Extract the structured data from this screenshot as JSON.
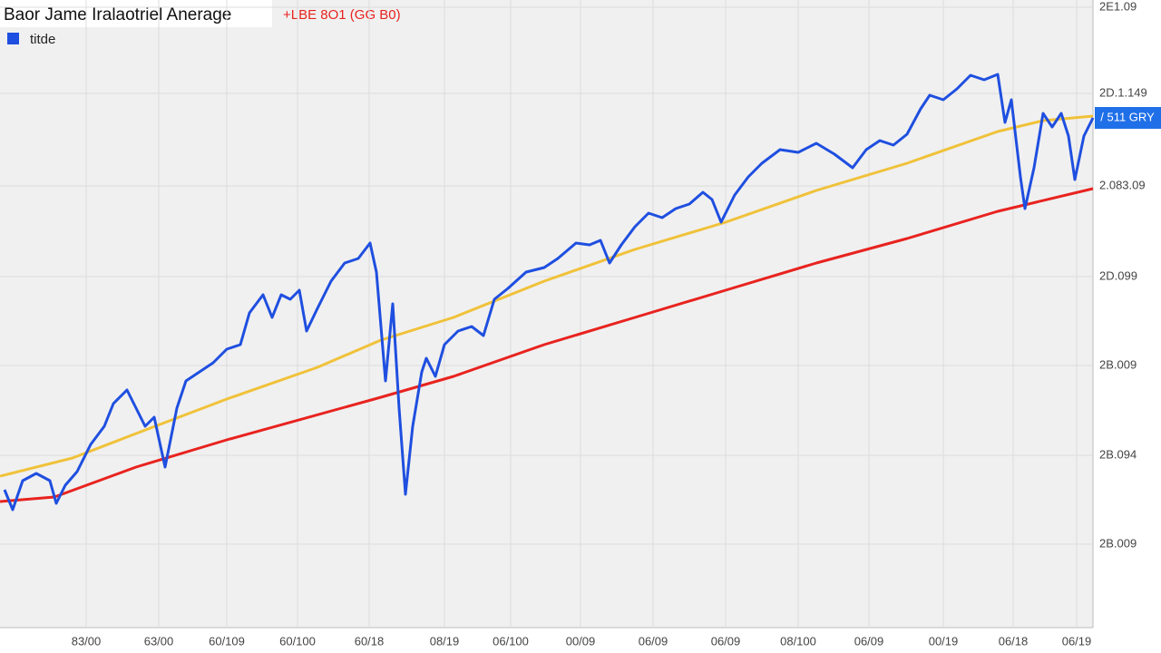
{
  "chart_data": {
    "type": "line",
    "title": "Baor Jame Iralaotriel Anerage",
    "subtitle": "+LBE 8O1 (GG B0)",
    "price_label": "/ 511 GRY",
    "legend": "top-left",
    "grid": true,
    "xlim": [
      0,
      1205
    ],
    "ylim": [
      0,
      692
    ],
    "xticks": [
      {
        "value": 95,
        "label": "83/00"
      },
      {
        "value": 175,
        "label": "63/00"
      },
      {
        "value": 250,
        "label": "60/109"
      },
      {
        "value": 328,
        "label": "60/100"
      },
      {
        "value": 407,
        "label": "60/18"
      },
      {
        "value": 490,
        "label": "08/19"
      },
      {
        "value": 563,
        "label": "06/100"
      },
      {
        "value": 640,
        "label": "00/09"
      },
      {
        "value": 720,
        "label": "06/09"
      },
      {
        "value": 800,
        "label": "06/09"
      },
      {
        "value": 880,
        "label": "08/100"
      },
      {
        "value": 958,
        "label": "06/09"
      },
      {
        "value": 1040,
        "label": "00/19"
      },
      {
        "value": 1117,
        "label": "06/18"
      },
      {
        "value": 1187,
        "label": "06/19"
      }
    ],
    "yticks": [
      {
        "value": 684,
        "label": "2E1.09"
      },
      {
        "value": 589,
        "label": "2D.1.149"
      },
      {
        "value": 487,
        "label": "2.083.09"
      },
      {
        "value": 387,
        "label": "2D.099"
      },
      {
        "value": 289,
        "label": "2B.009"
      },
      {
        "value": 190,
        "label": "2B.094"
      },
      {
        "value": 92,
        "label": "2B.009"
      }
    ],
    "series": [
      {
        "name": "titde",
        "color": "#1f4fe0",
        "x": [
          5,
          14,
          25,
          40,
          55,
          62,
          72,
          85,
          100,
          115,
          125,
          140,
          150,
          160,
          170,
          182,
          195,
          205,
          220,
          235,
          250,
          265,
          275,
          290,
          300,
          310,
          320,
          330,
          338,
          350,
          365,
          380,
          395,
          408,
          415,
          425,
          433,
          440,
          447,
          455,
          465,
          470,
          480,
          490,
          505,
          520,
          533,
          545,
          560,
          580,
          600,
          615,
          635,
          650,
          662,
          672,
          685,
          700,
          715,
          730,
          745,
          760,
          775,
          785,
          795,
          810,
          825,
          840,
          860,
          880,
          900,
          920,
          940,
          955,
          970,
          985,
          1000,
          1015,
          1025,
          1040,
          1055,
          1070,
          1085,
          1100,
          1108,
          1115,
          1125,
          1130,
          1140,
          1150,
          1160,
          1170,
          1178,
          1185,
          1195,
          1205
        ],
        "values": [
          152,
          130,
          162,
          170,
          162,
          137,
          157,
          172,
          202,
          222,
          247,
          262,
          242,
          222,
          232,
          177,
          242,
          272,
          282,
          292,
          307,
          312,
          347,
          367,
          342,
          367,
          362,
          372,
          327,
          352,
          382,
          402,
          407,
          424,
          392,
          272,
          357,
          242,
          147,
          222,
          282,
          297,
          277,
          312,
          327,
          332,
          322,
          362,
          374,
          392,
          397,
          407,
          424,
          422,
          427,
          402,
          422,
          442,
          457,
          452,
          462,
          467,
          480,
          472,
          447,
          477,
          497,
          512,
          527,
          524,
          534,
          522,
          507,
          527,
          537,
          532,
          544,
          572,
          587,
          582,
          594,
          609,
          604,
          610,
          557,
          582,
          497,
          462,
          507,
          567,
          552,
          567,
          542,
          494,
          542,
          562
        ]
      },
      {
        "color": "#f0c23a",
        "x": [
          0,
          80,
          150,
          250,
          350,
          420,
          500,
          600,
          700,
          800,
          900,
          1000,
          1100,
          1150,
          1205
        ],
        "values": [
          167,
          187,
          214,
          252,
          287,
          317,
          342,
          382,
          417,
          447,
          482,
          512,
          547,
          559,
          564
        ]
      },
      {
        "color": "#e8231f",
        "x": [
          0,
          60,
          150,
          250,
          420,
          500,
          600,
          700,
          800,
          900,
          1000,
          1100,
          1205
        ],
        "values": [
          139,
          144,
          177,
          207,
          254,
          277,
          312,
          342,
          372,
          402,
          429,
          459,
          484
        ]
      }
    ]
  }
}
